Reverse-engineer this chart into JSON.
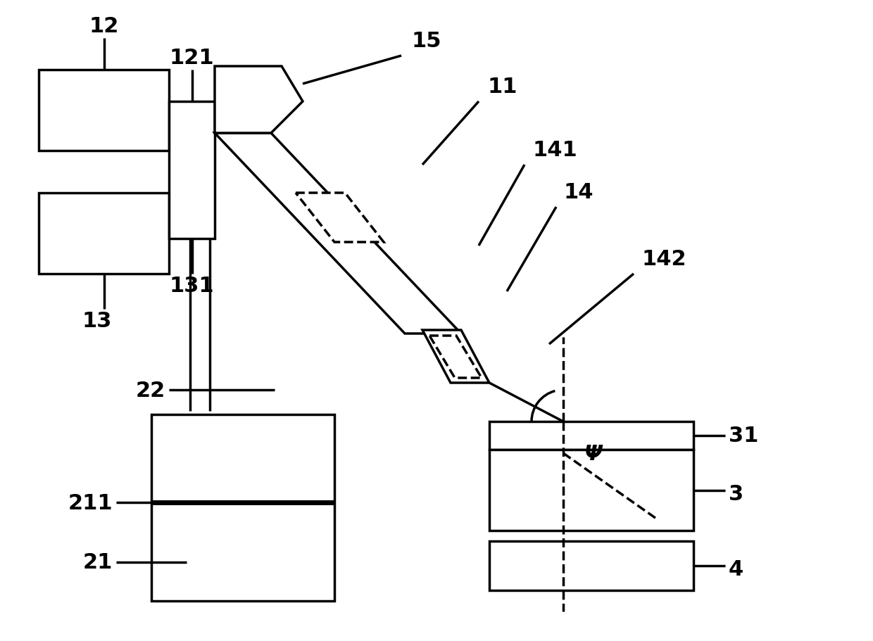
{
  "bg_color": "#ffffff",
  "lc": "#000000",
  "lw": 2.5,
  "lw_thick": 5.0,
  "lw_label": 2.0,
  "fs": 22,
  "fw": "bold"
}
